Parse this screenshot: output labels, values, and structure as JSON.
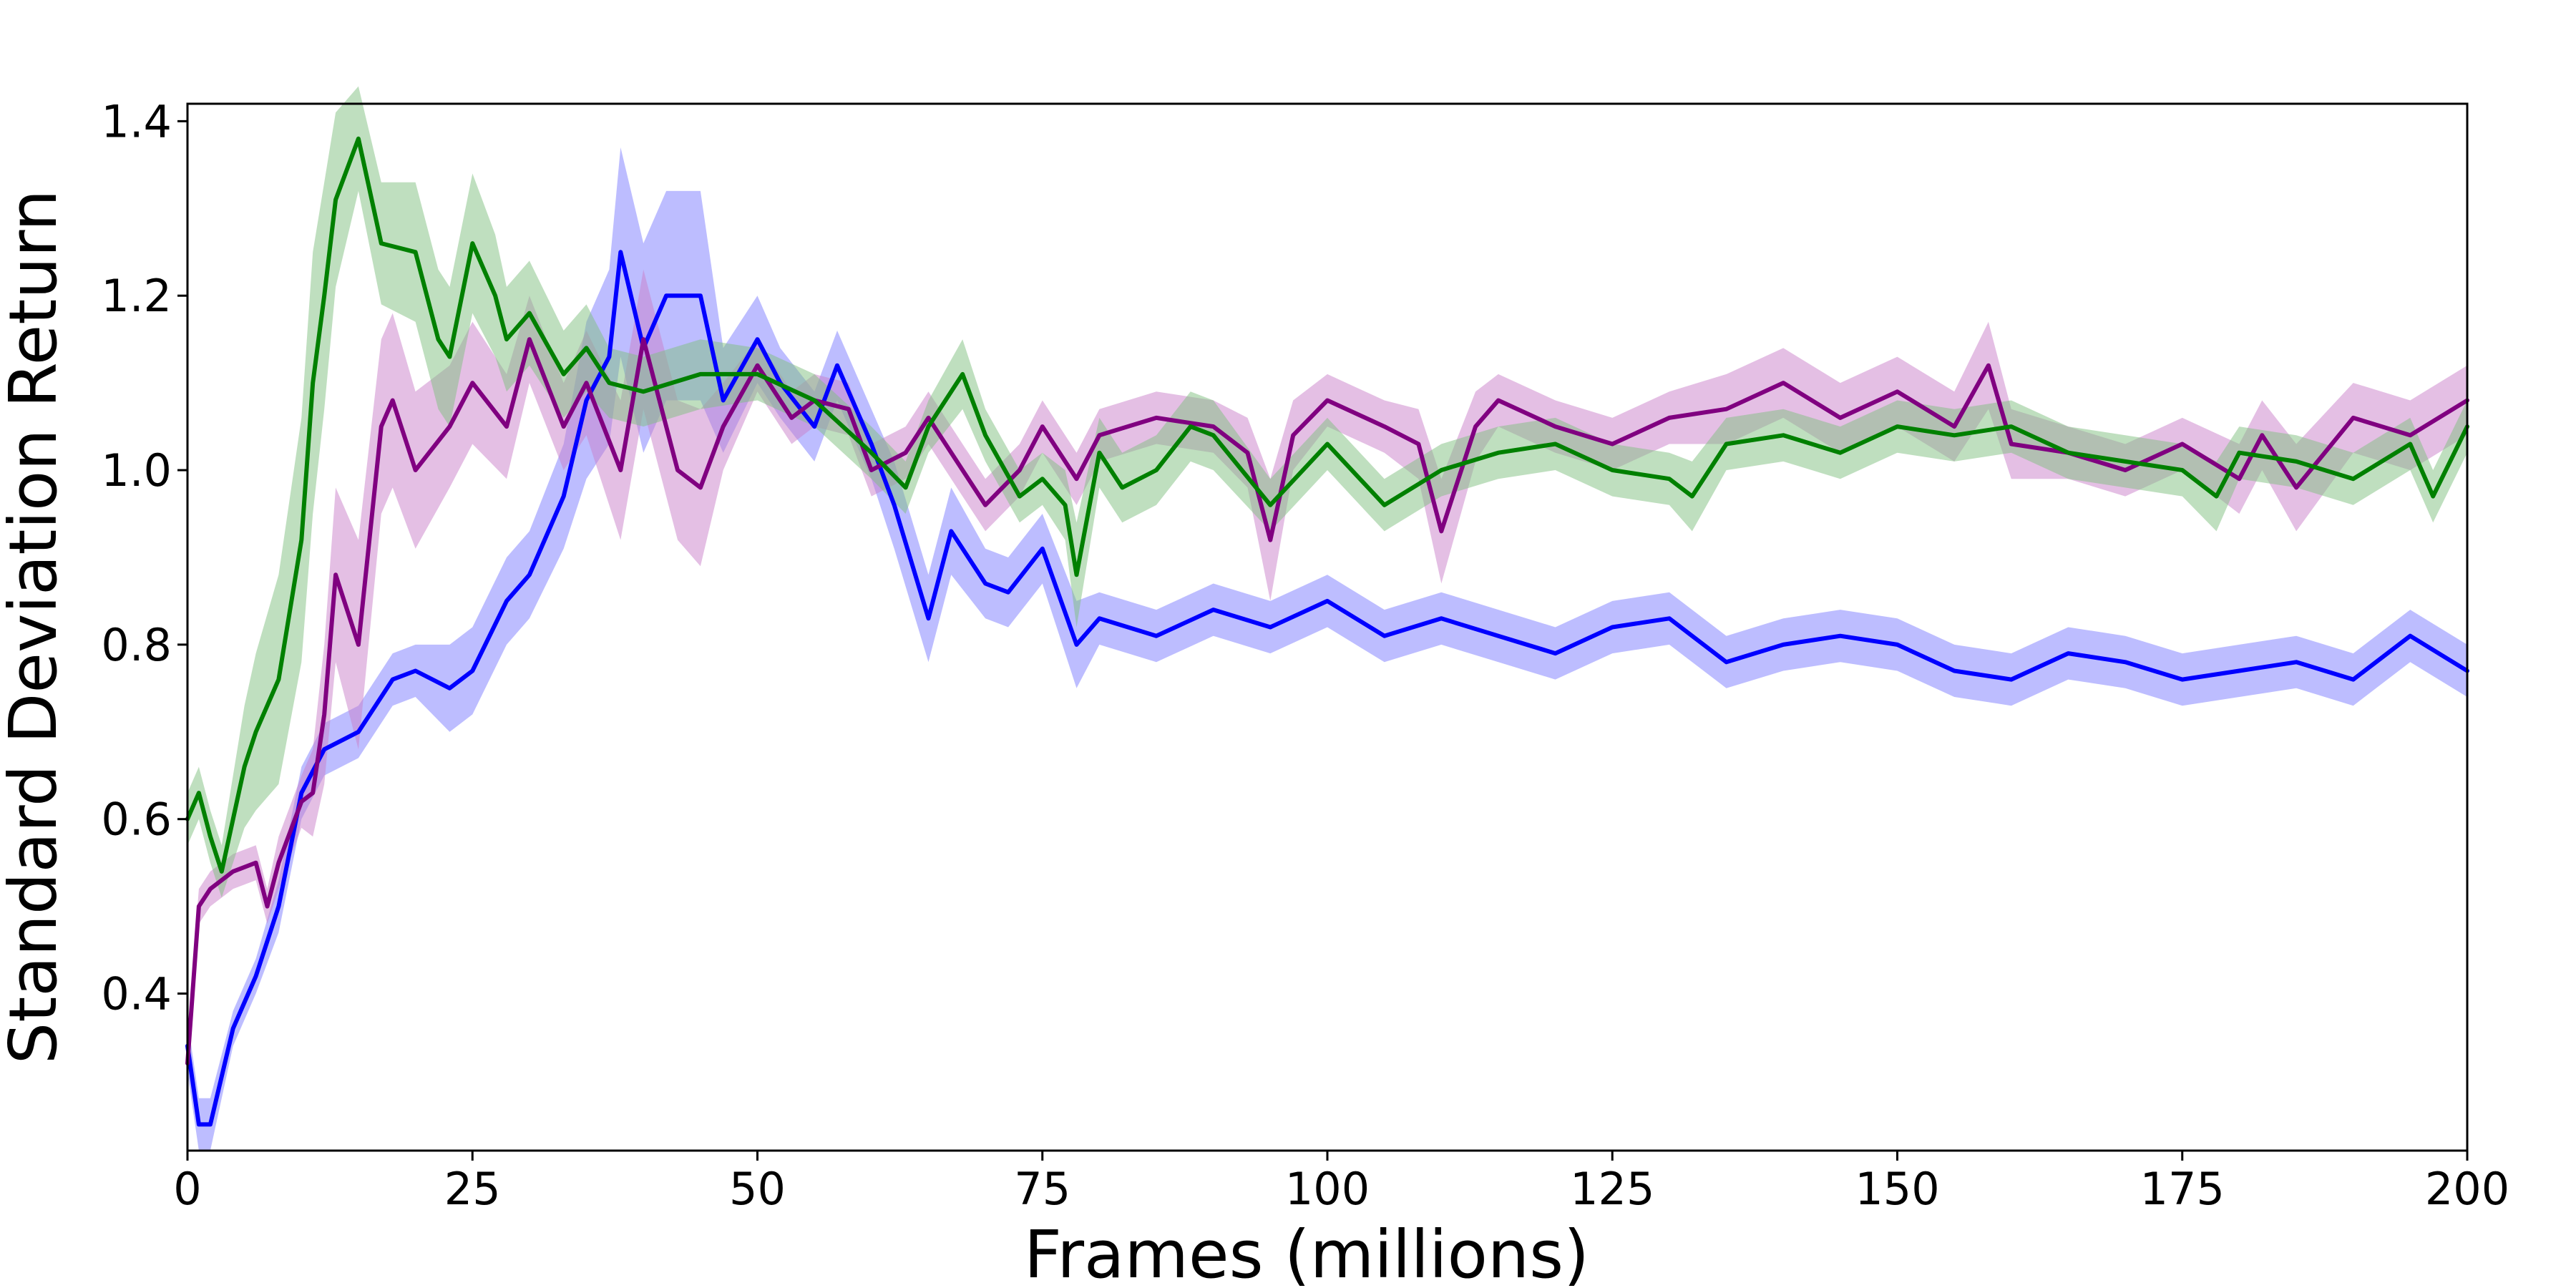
{
  "chart_data": {
    "type": "line",
    "title": "",
    "xlabel": "Frames (millions)",
    "ylabel": "Standard Deviation Return",
    "xlim": [
      0,
      200
    ],
    "ylim": [
      0.22,
      1.42
    ],
    "x_ticks": [
      0,
      25,
      50,
      75,
      100,
      125,
      150,
      175,
      200
    ],
    "x_tick_labels": [
      "0",
      "25",
      "50",
      "75",
      "100",
      "125",
      "150",
      "175",
      "200"
    ],
    "y_ticks": [
      0.4,
      0.6,
      0.8,
      1.0,
      1.2,
      1.4
    ],
    "y_tick_labels": [
      "0.4",
      "0.6",
      "0.8",
      "1.0",
      "1.2",
      "1.4"
    ],
    "grid": false,
    "legend": "none",
    "series": [
      {
        "color": "#0000ff",
        "band_color": "#7b7bff",
        "x": [
          0,
          1,
          2,
          4,
          6,
          8,
          10,
          12,
          15,
          18,
          20,
          23,
          25,
          28,
          30,
          33,
          35,
          37,
          38,
          40,
          42,
          45,
          47,
          50,
          52,
          55,
          57,
          60,
          62,
          65,
          67,
          70,
          72,
          75,
          78,
          80,
          85,
          90,
          95,
          100,
          105,
          110,
          115,
          120,
          125,
          130,
          135,
          140,
          145,
          150,
          155,
          160,
          165,
          170,
          175,
          180,
          185,
          190,
          195,
          200
        ],
        "y": [
          0.34,
          0.25,
          0.25,
          0.36,
          0.42,
          0.5,
          0.63,
          0.68,
          0.7,
          0.76,
          0.77,
          0.75,
          0.77,
          0.85,
          0.88,
          0.97,
          1.08,
          1.13,
          1.25,
          1.14,
          1.2,
          1.2,
          1.08,
          1.15,
          1.1,
          1.05,
          1.12,
          1.03,
          0.96,
          0.83,
          0.93,
          0.87,
          0.86,
          0.91,
          0.8,
          0.83,
          0.81,
          0.84,
          0.82,
          0.85,
          0.81,
          0.83,
          0.81,
          0.79,
          0.82,
          0.83,
          0.78,
          0.8,
          0.81,
          0.8,
          0.77,
          0.76,
          0.79,
          0.78,
          0.76,
          0.77,
          0.78,
          0.76,
          0.81,
          0.77
        ],
        "band": [
          0.03,
          0.03,
          0.03,
          0.02,
          0.02,
          0.03,
          0.03,
          0.03,
          0.03,
          0.03,
          0.03,
          0.05,
          0.05,
          0.05,
          0.05,
          0.06,
          0.09,
          0.1,
          0.12,
          0.12,
          0.12,
          0.12,
          0.06,
          0.05,
          0.04,
          0.04,
          0.04,
          0.04,
          0.05,
          0.05,
          0.05,
          0.04,
          0.04,
          0.04,
          0.05,
          0.03,
          0.03,
          0.03,
          0.03,
          0.03,
          0.03,
          0.03,
          0.03,
          0.03,
          0.03,
          0.03,
          0.03,
          0.03,
          0.03,
          0.03,
          0.03,
          0.03,
          0.03,
          0.03,
          0.03,
          0.03,
          0.03,
          0.03,
          0.03,
          0.03
        ]
      },
      {
        "color": "#800080",
        "band_color": "#c97fc9",
        "x": [
          0,
          1,
          2,
          4,
          6,
          7,
          8,
          10,
          11,
          12,
          13,
          15,
          17,
          18,
          20,
          23,
          25,
          28,
          30,
          33,
          35,
          38,
          40,
          43,
          45,
          47,
          50,
          53,
          55,
          58,
          60,
          63,
          65,
          68,
          70,
          73,
          75,
          78,
          80,
          85,
          90,
          93,
          95,
          97,
          100,
          105,
          108,
          110,
          113,
          115,
          120,
          125,
          130,
          135,
          140,
          145,
          150,
          155,
          158,
          160,
          165,
          170,
          175,
          180,
          182,
          185,
          190,
          195,
          200
        ],
        "y": [
          0.32,
          0.5,
          0.52,
          0.54,
          0.55,
          0.5,
          0.55,
          0.62,
          0.63,
          0.72,
          0.88,
          0.8,
          1.05,
          1.08,
          1.0,
          1.05,
          1.1,
          1.05,
          1.15,
          1.05,
          1.1,
          1.0,
          1.15,
          1.0,
          0.98,
          1.05,
          1.12,
          1.06,
          1.08,
          1.07,
          1.0,
          1.02,
          1.06,
          1.0,
          0.96,
          1.0,
          1.05,
          0.99,
          1.04,
          1.06,
          1.05,
          1.02,
          0.92,
          1.04,
          1.08,
          1.05,
          1.03,
          0.93,
          1.05,
          1.08,
          1.05,
          1.03,
          1.06,
          1.07,
          1.1,
          1.06,
          1.09,
          1.05,
          1.12,
          1.03,
          1.02,
          1.0,
          1.03,
          0.99,
          1.04,
          0.98,
          1.06,
          1.04,
          1.08
        ],
        "band": [
          0.03,
          0.02,
          0.02,
          0.02,
          0.02,
          0.02,
          0.03,
          0.03,
          0.05,
          0.08,
          0.1,
          0.12,
          0.1,
          0.1,
          0.09,
          0.07,
          0.07,
          0.06,
          0.05,
          0.05,
          0.06,
          0.08,
          0.08,
          0.08,
          0.09,
          0.05,
          0.03,
          0.03,
          0.03,
          0.03,
          0.03,
          0.03,
          0.03,
          0.03,
          0.03,
          0.03,
          0.03,
          0.03,
          0.03,
          0.03,
          0.03,
          0.04,
          0.07,
          0.04,
          0.03,
          0.03,
          0.04,
          0.06,
          0.04,
          0.03,
          0.03,
          0.03,
          0.03,
          0.04,
          0.04,
          0.04,
          0.04,
          0.04,
          0.05,
          0.04,
          0.03,
          0.03,
          0.03,
          0.04,
          0.04,
          0.05,
          0.04,
          0.04,
          0.04
        ]
      },
      {
        "color": "#008000",
        "band_color": "#7fbf7f",
        "x": [
          0,
          1,
          2,
          3,
          4,
          5,
          6,
          8,
          10,
          11,
          12,
          13,
          15,
          17,
          20,
          22,
          23,
          25,
          27,
          28,
          30,
          33,
          35,
          37,
          40,
          45,
          50,
          55,
          60,
          63,
          65,
          68,
          70,
          73,
          75,
          77,
          78,
          80,
          82,
          85,
          88,
          90,
          95,
          100,
          105,
          110,
          115,
          120,
          125,
          130,
          132,
          135,
          140,
          145,
          150,
          155,
          160,
          165,
          170,
          175,
          178,
          180,
          185,
          190,
          195,
          197,
          200
        ],
        "y": [
          0.6,
          0.63,
          0.58,
          0.54,
          0.6,
          0.66,
          0.7,
          0.76,
          0.92,
          1.1,
          1.2,
          1.31,
          1.38,
          1.26,
          1.25,
          1.15,
          1.13,
          1.26,
          1.2,
          1.15,
          1.18,
          1.11,
          1.14,
          1.1,
          1.09,
          1.11,
          1.11,
          1.08,
          1.02,
          0.98,
          1.05,
          1.11,
          1.04,
          0.97,
          0.99,
          0.96,
          0.88,
          1.02,
          0.98,
          1.0,
          1.05,
          1.04,
          0.96,
          1.03,
          0.96,
          1.0,
          1.02,
          1.03,
          1.0,
          0.99,
          0.97,
          1.03,
          1.04,
          1.02,
          1.05,
          1.04,
          1.05,
          1.02,
          1.01,
          1.0,
          0.97,
          1.02,
          1.01,
          0.99,
          1.03,
          0.97,
          1.05
        ],
        "band": [
          0.03,
          0.03,
          0.03,
          0.03,
          0.05,
          0.07,
          0.09,
          0.12,
          0.14,
          0.15,
          0.13,
          0.1,
          0.06,
          0.07,
          0.08,
          0.08,
          0.08,
          0.08,
          0.07,
          0.06,
          0.06,
          0.05,
          0.05,
          0.04,
          0.04,
          0.04,
          0.03,
          0.03,
          0.03,
          0.03,
          0.03,
          0.04,
          0.03,
          0.03,
          0.03,
          0.04,
          0.06,
          0.04,
          0.04,
          0.04,
          0.04,
          0.04,
          0.03,
          0.03,
          0.03,
          0.03,
          0.03,
          0.03,
          0.03,
          0.03,
          0.04,
          0.03,
          0.03,
          0.03,
          0.03,
          0.03,
          0.03,
          0.03,
          0.03,
          0.03,
          0.04,
          0.03,
          0.03,
          0.03,
          0.03,
          0.03,
          0.03
        ]
      }
    ]
  }
}
